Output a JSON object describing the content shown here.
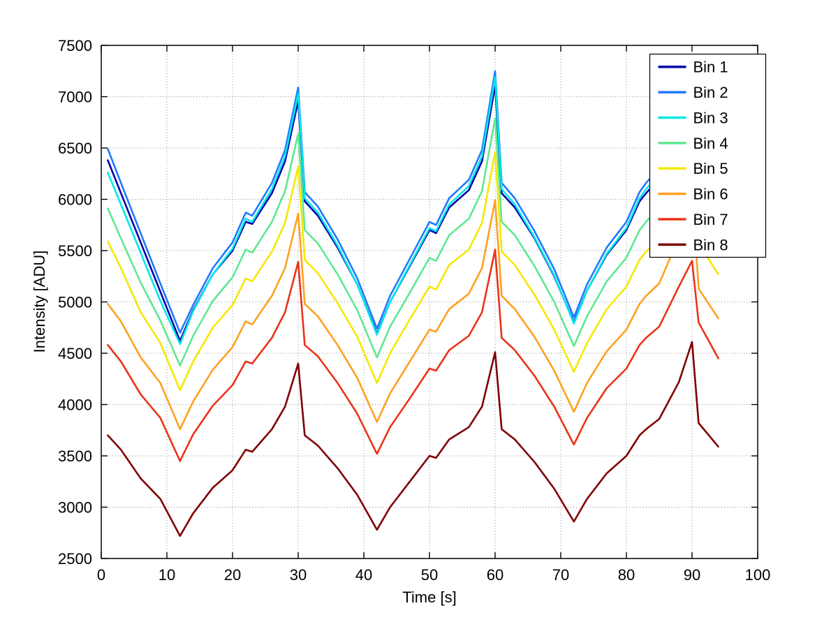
{
  "figure": {
    "background": "#ffffff",
    "axes_color": "#000000",
    "grid_color": "#909090"
  },
  "chart_data": {
    "type": "line",
    "title": "",
    "xlabel": "Time [s]",
    "ylabel": "Intensity [ADU]",
    "xlim": [
      0,
      100
    ],
    "ylim": [
      2500,
      7500
    ],
    "xticks": [
      0,
      10,
      20,
      30,
      40,
      50,
      60,
      70,
      80,
      90,
      100
    ],
    "yticks": [
      2500,
      3000,
      3500,
      4000,
      4500,
      5000,
      5500,
      6000,
      6500,
      7000,
      7500
    ],
    "grid": true,
    "legend_position": "northeast",
    "x": [
      1,
      3,
      6,
      9,
      12,
      14,
      17,
      20,
      22,
      23,
      26,
      28,
      30,
      31,
      33,
      36,
      39,
      42,
      44,
      47,
      50,
      51,
      53,
      56,
      58,
      60,
      61,
      63,
      66,
      69,
      72,
      74,
      77,
      80,
      82,
      83,
      85,
      88,
      90,
      91,
      94
    ],
    "series": [
      {
        "name": "Bin 1",
        "color": "#0000ad",
        "values": [
          6380,
          6060,
          5580,
          5100,
          4620,
          4920,
          5270,
          5500,
          5780,
          5760,
          6060,
          6370,
          6960,
          5980,
          5840,
          5530,
          5170,
          4690,
          5000,
          5350,
          5700,
          5670,
          5920,
          6090,
          6370,
          7110,
          6060,
          5920,
          5620,
          5250,
          4800,
          5110,
          5460,
          5700,
          5980,
          6060,
          6200,
          6710,
          7250,
          6150,
          5830
        ]
      },
      {
        "name": "Bin 2",
        "color": "#2079ff",
        "values": [
          6490,
          6160,
          5670,
          5180,
          4700,
          4970,
          5330,
          5580,
          5870,
          5840,
          6160,
          6480,
          7090,
          6070,
          5930,
          5610,
          5230,
          4740,
          5060,
          5420,
          5780,
          5750,
          6010,
          6190,
          6480,
          7250,
          6160,
          6010,
          5690,
          5320,
          4850,
          5170,
          5530,
          5780,
          6070,
          6160,
          6300,
          6820,
          7390,
          6240,
          5910
        ]
      },
      {
        "name": "Bin 3",
        "color": "#00e8e8",
        "values": [
          6260,
          5950,
          5480,
          5010,
          4590,
          4910,
          5270,
          5520,
          5810,
          5780,
          6100,
          6420,
          7030,
          6010,
          5870,
          5550,
          5170,
          4680,
          5000,
          5360,
          5720,
          5690,
          5950,
          6130,
          6420,
          7190,
          6100,
          5950,
          5630,
          5260,
          4790,
          5110,
          5470,
          5720,
          6010,
          6100,
          6240,
          6760,
          7330,
          6180,
          5850
        ]
      },
      {
        "name": "Bin 4",
        "color": "#5fe88f",
        "values": [
          5910,
          5620,
          5190,
          4820,
          4380,
          4670,
          5010,
          5240,
          5510,
          5480,
          5780,
          6080,
          6640,
          5700,
          5570,
          5270,
          4920,
          4460,
          4760,
          5090,
          5430,
          5400,
          5650,
          5810,
          6080,
          6790,
          5780,
          5650,
          5350,
          5000,
          4570,
          4860,
          5200,
          5430,
          5700,
          5780,
          5920,
          6400,
          6930,
          5860,
          5550
        ]
      },
      {
        "name": "Bin 5",
        "color": "#f5e800",
        "values": [
          5590,
          5330,
          4900,
          4600,
          4140,
          4420,
          4750,
          4970,
          5230,
          5200,
          5490,
          5770,
          6320,
          5410,
          5280,
          4990,
          4660,
          4210,
          4500,
          4830,
          5150,
          5120,
          5360,
          5510,
          5770,
          6460,
          5490,
          5360,
          5070,
          4730,
          4320,
          4600,
          4930,
          5150,
          5410,
          5490,
          5620,
          6090,
          6590,
          5570,
          5270
        ]
      },
      {
        "name": "Bin 6",
        "color": "#ffa020",
        "values": [
          4980,
          4810,
          4460,
          4210,
          3760,
          4030,
          4340,
          4560,
          4810,
          4780,
          5060,
          5330,
          5860,
          4980,
          4860,
          4580,
          4260,
          3830,
          4110,
          4420,
          4730,
          4710,
          4930,
          5080,
          5330,
          5990,
          5060,
          4930,
          4660,
          4330,
          3930,
          4210,
          4520,
          4730,
          4980,
          5060,
          5180,
          5630,
          6120,
          5130,
          4840
        ]
      },
      {
        "name": "Bin 7",
        "color": "#ea3318",
        "values": [
          4580,
          4420,
          4100,
          3870,
          3450,
          3710,
          3990,
          4190,
          4420,
          4400,
          4650,
          4900,
          5390,
          4580,
          4470,
          4210,
          3910,
          3520,
          3780,
          4060,
          4350,
          4330,
          4530,
          4670,
          4900,
          5510,
          4650,
          4530,
          4280,
          3980,
          3610,
          3870,
          4160,
          4350,
          4580,
          4650,
          4760,
          5150,
          5400,
          4800,
          4450
        ]
      },
      {
        "name": "Bin 8",
        "color": "#7f0000",
        "values": [
          3700,
          3560,
          3280,
          3080,
          2720,
          2940,
          3190,
          3360,
          3560,
          3540,
          3760,
          3980,
          4400,
          3700,
          3600,
          3380,
          3120,
          2780,
          3000,
          3250,
          3500,
          3480,
          3660,
          3780,
          3980,
          4510,
          3760,
          3660,
          3440,
          3180,
          2860,
          3080,
          3330,
          3500,
          3700,
          3760,
          3860,
          4220,
          4610,
          3820,
          3590
        ]
      }
    ]
  }
}
